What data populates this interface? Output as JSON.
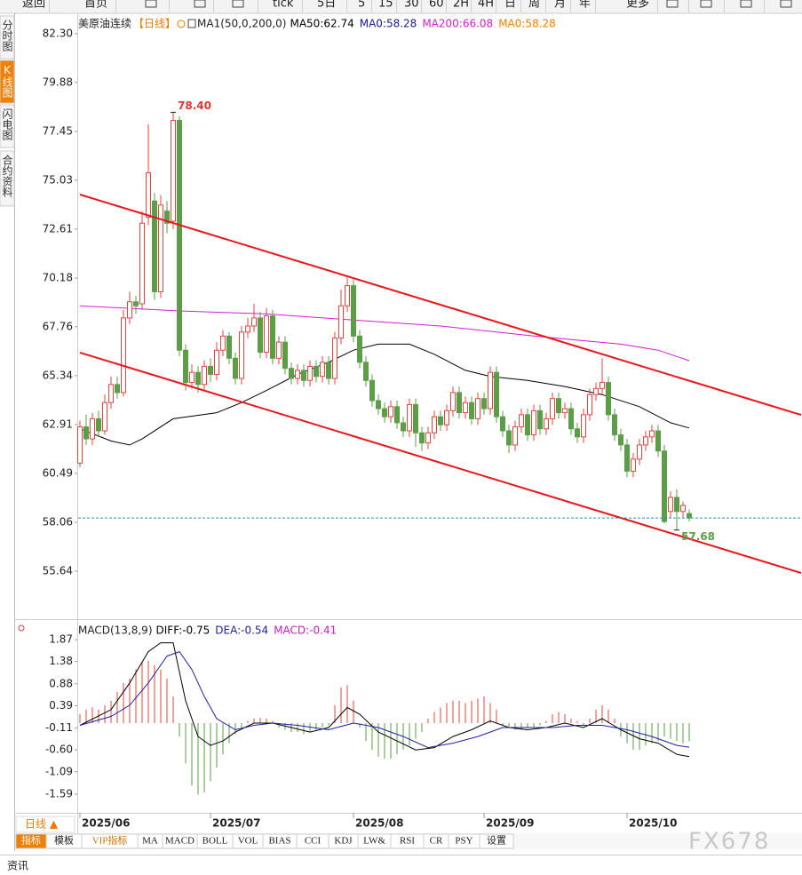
{
  "toolbar": [
    "返回",
    "首页",
    "tick",
    "5日",
    "5",
    "15",
    "30",
    "60",
    "2H",
    "4H",
    "日",
    "周",
    "月",
    "年",
    "更多"
  ],
  "side_tabs": [
    "分时图",
    "K线图",
    "闪电图",
    "合约资料"
  ],
  "chart_data": [
    {
      "type": "candlestick",
      "title": "美原油连续",
      "period": "【日线】",
      "period_color": "#f07800",
      "indicator": "MA1(50,0,200,0)",
      "legend": [
        {
          "text": "MA50:62.74",
          "color": "#000000"
        },
        {
          "text": "MA0:58.28",
          "color": "#1a1a8c"
        },
        {
          "text": "MA200:66.08",
          "color": "#d020d0"
        },
        {
          "text": "MA0:58.28",
          "color": "#f08000"
        }
      ],
      "up_color": "#e0463f",
      "down_color": "#5b9e47",
      "last_line_color": "#2b8fb5",
      "ylim": [
        53.26,
        83.0
      ],
      "yticks": [
        {
          "value": 82.3,
          "label": "82.30"
        },
        79.88,
        77.45,
        75.03,
        72.61,
        70.18,
        67.76,
        65.34,
        62.91,
        60.49,
        58.06,
        55.64
      ],
      "open": [
        61.0,
        62.8,
        62.2,
        63.2,
        62.6,
        64.0,
        64.9,
        64.5,
        68.2,
        69.0,
        68.9,
        73.2,
        74.0,
        69.5,
        73.5,
        73.0,
        78.0,
        66.6,
        65.0,
        65.5,
        64.9,
        65.8,
        65.4,
        66.6,
        67.3,
        66.2,
        65.2,
        67.5,
        67.8,
        68.2,
        66.5,
        68.3,
        66.2,
        67.0,
        65.7,
        65.2,
        65.6,
        65.1,
        65.8,
        65.3,
        66.0,
        65.2,
        67.2,
        68.8,
        69.8,
        67.3,
        66.0,
        65.1,
        64.1,
        63.7,
        63.3,
        63.8,
        63.0,
        62.6,
        63.9,
        62.5,
        62.0,
        62.5,
        63.3,
        62.9,
        63.6,
        64.5,
        63.5,
        64.0,
        63.2,
        64.2,
        63.7,
        65.5,
        63.3,
        62.6,
        61.9,
        62.8,
        63.4,
        62.4,
        63.6,
        62.7,
        63.2,
        64.2,
        63.5,
        63.7,
        62.7,
        62.3,
        63.4,
        64.4,
        64.7,
        65.0,
        63.4,
        62.4,
        61.9,
        60.6,
        61.2,
        61.9,
        62.3,
        62.6,
        61.6,
        58.6,
        59.3,
        58.6,
        58.5
      ],
      "high": [
        63.1,
        63.4,
        63.5,
        63.6,
        64.4,
        65.3,
        65.3,
        68.6,
        69.5,
        69.3,
        73.5,
        77.8,
        74.4,
        74.3,
        74.0,
        78.4,
        78.2,
        66.9,
        65.9,
        65.8,
        66.1,
        66.2,
        67.0,
        67.6,
        67.5,
        66.5,
        67.8,
        68.2,
        68.9,
        68.5,
        68.7,
        68.6,
        67.3,
        67.3,
        66.0,
        65.9,
        65.9,
        66.1,
        66.1,
        66.3,
        66.3,
        67.5,
        69.6,
        70.2,
        70.1,
        67.6,
        66.3,
        65.4,
        64.4,
        64.0,
        64.1,
        64.1,
        63.3,
        64.2,
        64.2,
        62.8,
        62.8,
        63.6,
        63.6,
        63.9,
        64.8,
        64.8,
        64.3,
        64.3,
        64.5,
        64.5,
        65.8,
        65.8,
        63.6,
        62.9,
        63.1,
        63.7,
        63.7,
        63.9,
        63.9,
        63.5,
        64.5,
        64.5,
        64.0,
        64.0,
        63.0,
        63.7,
        64.7,
        65.0,
        66.2,
        65.3,
        63.7,
        62.7,
        62.2,
        61.5,
        62.2,
        62.6,
        62.9,
        62.9,
        61.9,
        59.6,
        59.7,
        59.1,
        58.7
      ],
      "low": [
        60.8,
        61.9,
        61.9,
        62.3,
        62.4,
        63.7,
        64.2,
        64.3,
        67.9,
        68.4,
        68.6,
        72.8,
        69.1,
        69.2,
        72.4,
        72.6,
        66.3,
        64.6,
        64.7,
        64.5,
        64.6,
        65.0,
        65.1,
        66.3,
        65.9,
        64.9,
        64.9,
        67.2,
        67.5,
        66.2,
        66.2,
        65.9,
        65.9,
        65.4,
        64.9,
        64.9,
        64.8,
        64.8,
        65.0,
        65.0,
        64.9,
        64.9,
        66.9,
        68.5,
        67.0,
        65.7,
        64.8,
        63.8,
        63.4,
        63.0,
        63.0,
        62.7,
        62.3,
        62.3,
        61.8,
        61.6,
        61.7,
        62.2,
        62.6,
        62.6,
        63.3,
        63.2,
        63.2,
        62.9,
        62.9,
        63.4,
        63.4,
        63.0,
        62.3,
        61.5,
        61.6,
        62.5,
        62.1,
        62.1,
        62.4,
        62.4,
        62.9,
        63.2,
        63.2,
        62.4,
        62.0,
        62.0,
        63.1,
        64.1,
        64.4,
        63.1,
        62.1,
        61.6,
        60.3,
        60.3,
        60.9,
        61.6,
        62.0,
        61.3,
        58.0,
        58.3,
        57.68,
        58.3,
        58.1
      ],
      "close": [
        62.8,
        62.2,
        63.2,
        62.6,
        64.0,
        64.9,
        64.5,
        68.2,
        69.0,
        68.8,
        72.9,
        75.4,
        69.5,
        73.8,
        72.9,
        78.0,
        66.6,
        65.0,
        65.5,
        64.9,
        65.8,
        65.4,
        66.6,
        67.3,
        66.2,
        65.2,
        67.5,
        67.8,
        68.2,
        66.5,
        68.3,
        66.2,
        67.0,
        65.7,
        65.2,
        65.6,
        65.1,
        65.8,
        65.3,
        66.0,
        65.2,
        67.2,
        68.8,
        69.8,
        67.3,
        66.0,
        65.1,
        64.1,
        63.7,
        63.3,
        63.8,
        63.0,
        62.6,
        63.9,
        62.5,
        62.0,
        62.5,
        63.3,
        62.9,
        63.6,
        64.5,
        63.5,
        64.0,
        63.2,
        64.2,
        63.7,
        65.5,
        63.3,
        62.6,
        61.9,
        62.8,
        63.4,
        62.4,
        63.6,
        62.7,
        63.2,
        64.2,
        63.5,
        63.7,
        62.7,
        62.3,
        63.4,
        64.4,
        64.7,
        65.0,
        63.4,
        62.4,
        61.9,
        60.6,
        61.2,
        61.9,
        62.3,
        62.6,
        61.6,
        58.1,
        59.3,
        58.6,
        58.9,
        58.28
      ],
      "lines": [
        {
          "color": "#000000",
          "x": [
            0,
            5,
            8,
            10,
            15,
            22,
            26,
            30,
            35,
            40,
            44,
            48,
            53,
            57,
            62,
            66,
            72,
            78,
            84,
            90,
            95,
            98
          ],
          "values": [
            62.7,
            62.1,
            61.9,
            62.2,
            63.2,
            63.5,
            64.0,
            64.6,
            65.4,
            66.0,
            66.6,
            66.9,
            66.9,
            66.4,
            65.6,
            65.3,
            65.1,
            64.8,
            64.4,
            63.8,
            63.0,
            62.74
          ]
        },
        {
          "color": "#d020d0",
          "x": [
            0,
            16,
            30,
            44,
            58,
            73,
            87,
            93,
            98
          ],
          "values": [
            68.8,
            68.55,
            68.4,
            68.1,
            67.8,
            67.3,
            66.9,
            66.6,
            66.08
          ]
        }
      ],
      "trendlines": [
        {
          "color": "#e8161b",
          "x": [
            0,
            116
          ],
          "values": [
            74.32,
            63.39
          ]
        },
        {
          "color": "#e8161b",
          "x": [
            0,
            116
          ],
          "values": [
            66.48,
            55.55
          ]
        }
      ],
      "annotations": [
        {
          "index": 15,
          "value": 78.4,
          "label": "78.40",
          "color": "#d93a32"
        },
        {
          "index": 96,
          "value": 57.68,
          "label": "57.68",
          "color": "#5b9e47"
        }
      ]
    },
    {
      "type": "macd",
      "title": "MACD(13,8,9)",
      "legend": [
        {
          "text": "DIFF:-0.75",
          "color": "#000000"
        },
        {
          "text": "DEA:-0.54",
          "color": "#1f1fa0"
        },
        {
          "text": "MACD:-0.41",
          "color": "#c020c0"
        }
      ],
      "up_color": "#e0463f",
      "down_color": "#5b9e47",
      "ylim": [
        -2.01,
        2.03
      ],
      "yticks": [
        1.87,
        1.38,
        0.88,
        0.39,
        -0.11,
        {
          "value": -0.6,
          "label": "-0.60"
        },
        -1.09,
        -1.59
      ],
      "histogram": [
        0.2,
        0.3,
        0.35,
        0.3,
        0.4,
        0.5,
        0.7,
        0.9,
        1.0,
        1.2,
        1.35,
        1.4,
        1.3,
        1.2,
        1.0,
        0.6,
        -0.3,
        -0.9,
        -1.4,
        -1.6,
        -1.55,
        -1.3,
        -1.0,
        -0.7,
        -0.45,
        -0.25,
        -0.1,
        0.05,
        0.1,
        0.12,
        0.1,
        0.05,
        -0.1,
        -0.15,
        -0.2,
        -0.2,
        -0.25,
        -0.2,
        -0.15,
        -0.1,
        -0.05,
        0.4,
        0.8,
        0.85,
        0.5,
        -0.1,
        -0.4,
        -0.6,
        -0.75,
        -0.8,
        -0.8,
        -0.7,
        -0.6,
        -0.5,
        -0.35,
        -0.2,
        0.1,
        0.25,
        0.35,
        0.45,
        0.5,
        0.5,
        0.45,
        0.5,
        0.55,
        0.6,
        0.45,
        0.3,
        -0.05,
        -0.1,
        -0.15,
        -0.15,
        -0.1,
        -0.1,
        -0.05,
        0.05,
        0.2,
        0.25,
        0.2,
        0.1,
        0.05,
        -0.05,
        0.1,
        0.3,
        0.4,
        0.3,
        0.1,
        -0.3,
        -0.45,
        -0.6,
        -0.6,
        -0.5,
        -0.45,
        -0.4,
        -0.3,
        -0.35,
        -0.4,
        -0.45,
        -0.41
      ],
      "diff": {
        "color": "#000000",
        "x": [
          0,
          5,
          8,
          11,
          13,
          15,
          17,
          19,
          21,
          23,
          25,
          28,
          31,
          34,
          37,
          40,
          43,
          45,
          48,
          51,
          54,
          57,
          60,
          63,
          66,
          69,
          72,
          75,
          78,
          81,
          84,
          87,
          90,
          93,
          96,
          98
        ],
        "values": [
          -0.05,
          0.3,
          0.9,
          1.6,
          1.8,
          1.8,
          0.5,
          -0.3,
          -0.5,
          -0.4,
          -0.2,
          0.0,
          0.0,
          -0.1,
          -0.2,
          -0.1,
          0.35,
          0.2,
          -0.2,
          -0.4,
          -0.6,
          -0.55,
          -0.3,
          -0.15,
          0.05,
          -0.1,
          -0.15,
          -0.1,
          0.0,
          -0.1,
          0.1,
          -0.15,
          -0.35,
          -0.45,
          -0.7,
          -0.75
        ]
      },
      "dea": {
        "color": "#1f1fa0",
        "x": [
          0,
          5,
          8,
          11,
          14,
          16,
          18,
          20,
          22,
          25,
          28,
          31,
          35,
          40,
          44,
          48,
          52,
          56,
          60,
          64,
          68,
          72,
          76,
          80,
          84,
          88,
          92,
          96,
          98
        ],
        "values": [
          -0.05,
          0.15,
          0.4,
          0.9,
          1.5,
          1.6,
          1.2,
          0.6,
          0.1,
          -0.15,
          -0.05,
          0.0,
          -0.05,
          -0.15,
          0.0,
          -0.1,
          -0.3,
          -0.55,
          -0.45,
          -0.3,
          -0.1,
          -0.1,
          -0.1,
          -0.05,
          -0.05,
          -0.15,
          -0.3,
          -0.5,
          -0.54
        ]
      },
      "xticks": [
        {
          "value": 0,
          "label": "2025/06"
        },
        {
          "value": 21,
          "label": "2025/07"
        },
        {
          "value": 44,
          "label": "2025/08"
        },
        {
          "value": 65,
          "label": "2025/09"
        },
        {
          "value": 88,
          "label": "2025/10"
        }
      ]
    }
  ],
  "period_button": "日线 ▲",
  "indicator_tabs": [
    "指标",
    "模板",
    "VIP指标",
    "MA",
    "MACD",
    "BOLL",
    "VOL",
    "BIAS",
    "CCI",
    "KDJ",
    "LW&",
    "RSI",
    "CR",
    "PSY",
    "设置"
  ],
  "footer_tab": "资讯",
  "watermark": "FX678"
}
